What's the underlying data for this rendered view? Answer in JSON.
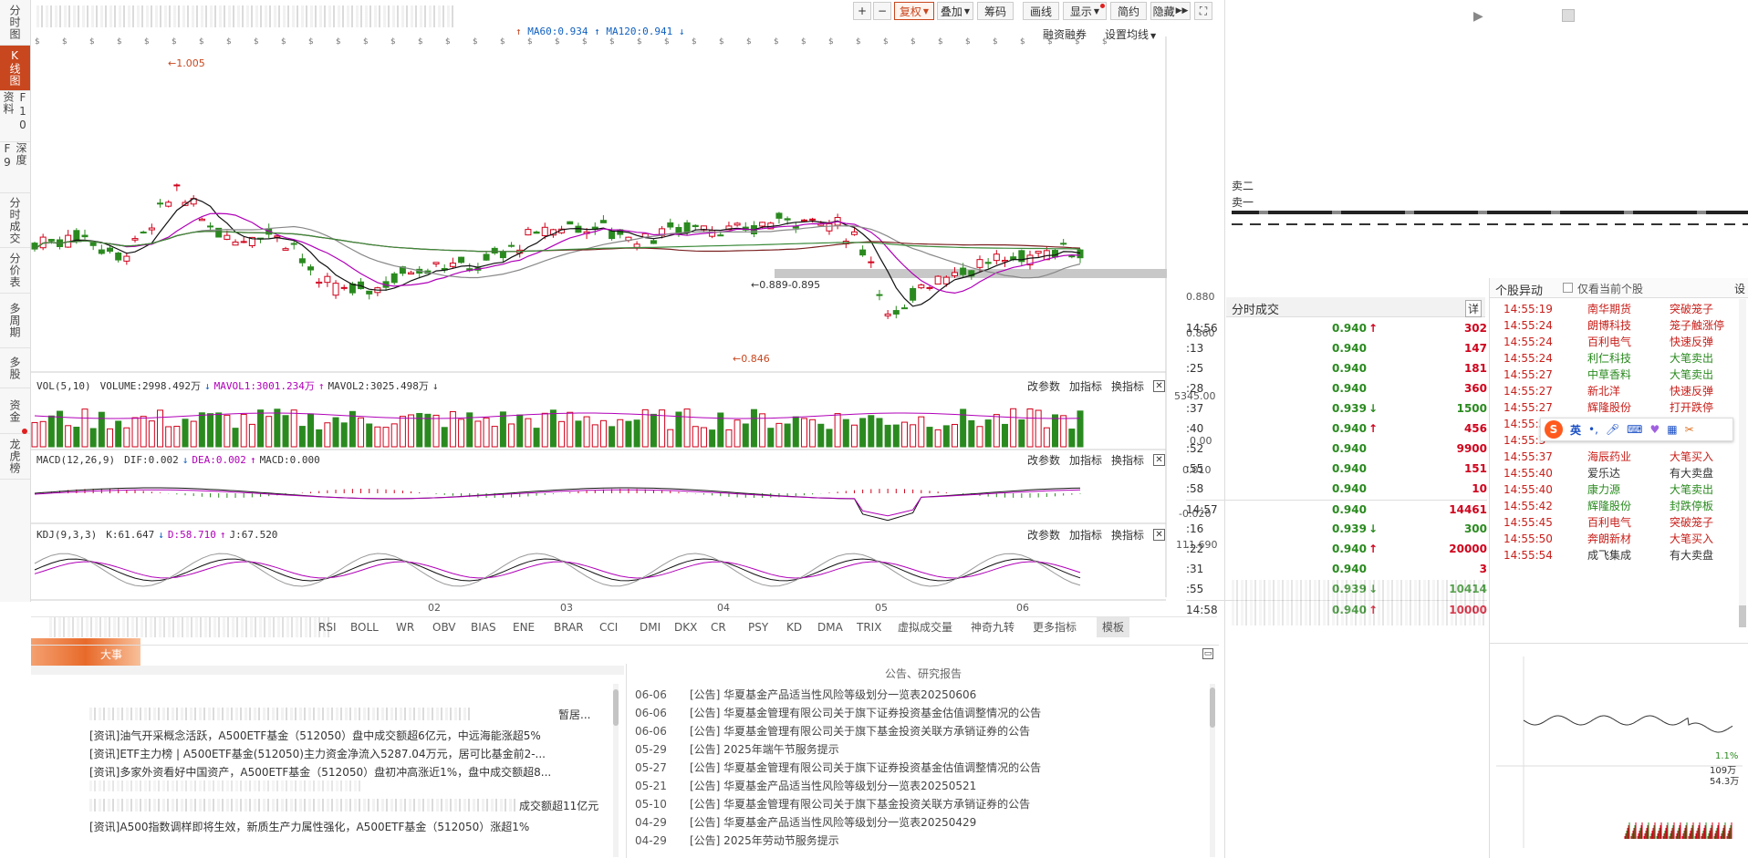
{
  "left_tabs": [
    {
      "label": "分时图",
      "active": false
    },
    {
      "label": "K线图",
      "active": true
    },
    {
      "label": "F10资料",
      "active": false
    },
    {
      "label": "深度F9",
      "active": false
    },
    {
      "label": "分时成交",
      "active": false
    },
    {
      "label": "分价表",
      "active": false
    },
    {
      "label": "多周期",
      "active": false
    },
    {
      "label": "多股",
      "active": false
    },
    {
      "label": "资金",
      "active": false
    },
    {
      "label": "龙虎榜",
      "active": false
    }
  ],
  "toolbar": {
    "plus": "+",
    "minus": "−",
    "fuquan": "复权",
    "diejia": "叠加",
    "chouma": "筹码",
    "huaxian": "画线",
    "xianshi": "显示",
    "jianyue": "简约",
    "yincang": "隐藏",
    "expand": "⛶"
  },
  "chart_header": {
    "ma60": "MA60:0.934",
    "ma120": "MA120:0.941",
    "rzrq": "融资融券",
    "setting": "设置均线"
  },
  "price_chart": {
    "high_label": "1.005",
    "range_label": "0.889-0.895",
    "low_label": "0.846",
    "axis": [
      "0.880",
      "0.860"
    ]
  },
  "vol": {
    "name": "VOL(5,10)",
    "volume": "VOLUME:2998.492万",
    "mavol1": "MAVOL1:3001.234万",
    "mavol2": "MAVOL2:3025.498万",
    "axis_top": "5345.00",
    "axis_bottom": "0.00"
  },
  "macd": {
    "name": "MACD(12,26,9)",
    "dif": "DIF:0.002",
    "dea": "DEA:0.002",
    "macd": "MACD:0.000",
    "axis_top": "0.010",
    "axis_bottom": "-0.020"
  },
  "kdj": {
    "name": "KDJ(9,3,3)",
    "k": "K:61.647",
    "d": "D:58.710",
    "j": "J:67.520",
    "axis_top": "111.690"
  },
  "ind_controls": {
    "change": "改参数",
    "add": "加指标",
    "swap": "换指标",
    "close": "✕"
  },
  "x_axis": [
    "02",
    "03",
    "04",
    "05",
    "06"
  ],
  "bottom_tabs": [
    "RSI",
    "BOLL",
    "WR",
    "OBV",
    "BIAS",
    "ENE",
    "BRAR",
    "CCI",
    "DMI",
    "DKX",
    "CR",
    "PSY",
    "KD",
    "DMA",
    "TRIX",
    "虚拟成交量",
    "神奇九转",
    "更多指标",
    "模板"
  ],
  "big_event": "大事",
  "news": [
    "[资讯]油气开采概念活跃，A500ETF基金（512050）盘中成交额超6亿元，中远海能涨超5%",
    "[资讯]ETF主力榜 | A500ETF基金(512050)主力资金净流入5287.04万元，居可比基金前2-...",
    "[资讯]多家外资看好中国资产，A500ETF基金（512050）盘初冲高涨近1%，盘中成交额超8...",
    "[资讯]A500指数调样即将生效，新质生产力属性强化，A500ETF基金（512050）涨超1%"
  ],
  "news_fragments": {
    "r1": "暂居...",
    "r5": "成交额超11亿元"
  },
  "ann_title": "公告、研究报告",
  "announcements": [
    {
      "date": "06-06",
      "text": "[公告] 华夏基金产品适当性风险等级划分一览表20250606"
    },
    {
      "date": "06-06",
      "text": "[公告] 华夏基金管理有限公司关于旗下证券投资基金估值调整情况的公告"
    },
    {
      "date": "06-06",
      "text": "[公告] 华夏基金管理有限公司关于旗下基金投资关联方承销证券的公告"
    },
    {
      "date": "05-29",
      "text": "[公告] 2025年端午节服务提示"
    },
    {
      "date": "05-27",
      "text": "[公告] 华夏基金管理有限公司关于旗下证券投资基金估值调整情况的公告"
    },
    {
      "date": "05-21",
      "text": "[公告] 华夏基金产品适当性风险等级划分一览表20250521"
    },
    {
      "date": "05-10",
      "text": "[公告] 华夏基金管理有限公司关于旗下基金投资关联方承销证券的公告"
    },
    {
      "date": "04-29",
      "text": "[公告] 华夏基金产品适当性风险等级划分一览表20250429"
    },
    {
      "date": "04-29",
      "text": "[公告] 2025年劳动节服务提示"
    }
  ],
  "order_book": {
    "s1": "卖二",
    "s2": "卖一"
  },
  "trades_panel": {
    "title": "分时成交",
    "btn": "详",
    "rows": [
      {
        "t": "14:56",
        "p": "0.940",
        "dir": "up",
        "v": "302"
      },
      {
        "t": ":13",
        "p": "0.940",
        "dir": "",
        "v": "147"
      },
      {
        "t": ":25",
        "p": "0.940",
        "dir": "",
        "v": "181"
      },
      {
        "t": ":28",
        "p": "0.940",
        "dir": "",
        "v": "360"
      },
      {
        "t": ":37",
        "p": "0.939",
        "dir": "down",
        "v": "1500"
      },
      {
        "t": ":40",
        "p": "0.940",
        "dir": "up",
        "v": "456"
      },
      {
        "t": ":52",
        "p": "0.940",
        "dir": "",
        "v": "9900"
      },
      {
        "t": ":55",
        "p": "0.940",
        "dir": "",
        "v": "151"
      },
      {
        "t": ":58",
        "p": "0.940",
        "dir": "",
        "v": "10"
      },
      {
        "t": "14:57",
        "p": "0.940",
        "dir": "",
        "v": "14461"
      },
      {
        "t": ":16",
        "p": "0.939",
        "dir": "down",
        "v": "300"
      },
      {
        "t": ":22",
        "p": "0.940",
        "dir": "up",
        "v": "20000"
      },
      {
        "t": ":31",
        "p": "0.940",
        "dir": "",
        "v": "3"
      },
      {
        "t": ":55",
        "p": "0.939",
        "dir": "down",
        "v": "10414"
      },
      {
        "t": "14:58",
        "p": "0.940",
        "dir": "up",
        "v": "10000"
      }
    ]
  },
  "movers": {
    "title": "个股异动",
    "checkbox": "仅看当前个股",
    "settings": "设",
    "rows": [
      {
        "t": "14:55:19",
        "n": "南华期货",
        "e": "突破笼子",
        "c": "red"
      },
      {
        "t": "14:55:24",
        "n": "朗博科技",
        "e": "笼子触涨停",
        "c": "red"
      },
      {
        "t": "14:55:24",
        "n": "百利电气",
        "e": "快速反弹",
        "c": "red"
      },
      {
        "t": "14:55:24",
        "n": "利仁科技",
        "e": "大笔卖出",
        "c": "green"
      },
      {
        "t": "14:55:27",
        "n": "中草香料",
        "e": "大笔卖出",
        "c": "green"
      },
      {
        "t": "14:55:27",
        "n": "新北洋",
        "e": "快速反弹",
        "c": "red"
      },
      {
        "t": "14:55:27",
        "n": "辉隆股份",
        "e": "打开跌停",
        "c": "red"
      },
      {
        "t": "14:55:3",
        "n": "",
        "e": "",
        "c": "red"
      },
      {
        "t": "14:55:3",
        "n": "",
        "e": "",
        "c": "red"
      },
      {
        "t": "14:55:37",
        "n": "海辰药业",
        "e": "大笔买入",
        "c": "red"
      },
      {
        "t": "14:55:40",
        "n": "爱乐达",
        "e": "有大卖盘",
        "c": "black"
      },
      {
        "t": "14:55:40",
        "n": "康力源",
        "e": "大笔卖出",
        "c": "green"
      },
      {
        "t": "14:55:42",
        "n": "辉隆股份",
        "e": "封跌停板",
        "c": "green"
      },
      {
        "t": "14:55:45",
        "n": "百利电气",
        "e": "突破笼子",
        "c": "red"
      },
      {
        "t": "14:55:50",
        "n": "奔朗新材",
        "e": "大笔买入",
        "c": "red"
      },
      {
        "t": "14:55:54",
        "n": "成飞集成",
        "e": "有大卖盘",
        "c": "black"
      }
    ]
  },
  "ime": {
    "s": "S",
    "lang": "英"
  },
  "mini": {
    "pct": "1.1%",
    "vol": "109万",
    "pct2": "54.3万"
  },
  "colors": {
    "accent": "#c8471f",
    "up": "#d0021b",
    "down": "#2a8a1f",
    "ma_black": "#111111",
    "ma_purple": "#b000b8",
    "ma_brown": "#7a1f1f",
    "ma_green": "#3a8a3a"
  }
}
